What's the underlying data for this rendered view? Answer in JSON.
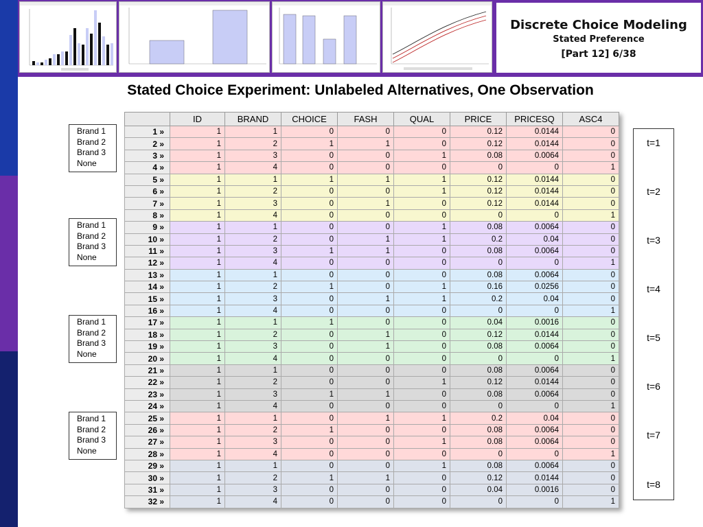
{
  "slide": {
    "title": "Stated Choice Experiment: Unlabeled Alternatives, One Observation"
  },
  "header": {
    "title_line1": "Discrete Choice Modeling",
    "title_line2": "Stated Preference",
    "title_line3": "[Part 12]   6/38"
  },
  "colors": {
    "sidebar_top": "#1a3aa8",
    "sidebar_mid": "#6a2ea8",
    "sidebar_bottom": "#14216e",
    "header_bg": "#6a2ea8",
    "group_colors": [
      "#ffd9d9",
      "#f8f7cf",
      "#e8d9fb",
      "#d9ecfb",
      "#d9f3dc",
      "#dadada",
      "#ffd9d9",
      "#dde2ec"
    ]
  },
  "legend_items": [
    "Brand 1",
    "Brand 2",
    "Brand 3",
    "None"
  ],
  "table": {
    "columns": [
      "ID",
      "BRAND",
      "CHOICE",
      "FASH",
      "QUAL",
      "PRICE",
      "PRICESQ",
      "ASC4"
    ],
    "rows": [
      [
        "1",
        "1",
        "0",
        "0",
        "0",
        "0.12",
        "0.0144",
        "0"
      ],
      [
        "1",
        "2",
        "1",
        "1",
        "0",
        "0.12",
        "0.0144",
        "0"
      ],
      [
        "1",
        "3",
        "0",
        "0",
        "1",
        "0.08",
        "0.0064",
        "0"
      ],
      [
        "1",
        "4",
        "0",
        "0",
        "0",
        "0",
        "0",
        "1"
      ],
      [
        "1",
        "1",
        "1",
        "1",
        "1",
        "0.12",
        "0.0144",
        "0"
      ],
      [
        "1",
        "2",
        "0",
        "0",
        "1",
        "0.12",
        "0.0144",
        "0"
      ],
      [
        "1",
        "3",
        "0",
        "1",
        "0",
        "0.12",
        "0.0144",
        "0"
      ],
      [
        "1",
        "4",
        "0",
        "0",
        "0",
        "0",
        "0",
        "1"
      ],
      [
        "1",
        "1",
        "0",
        "0",
        "1",
        "0.08",
        "0.0064",
        "0"
      ],
      [
        "1",
        "2",
        "0",
        "1",
        "1",
        "0.2",
        "0.04",
        "0"
      ],
      [
        "1",
        "3",
        "1",
        "1",
        "0",
        "0.08",
        "0.0064",
        "0"
      ],
      [
        "1",
        "4",
        "0",
        "0",
        "0",
        "0",
        "0",
        "1"
      ],
      [
        "1",
        "1",
        "0",
        "0",
        "0",
        "0.08",
        "0.0064",
        "0"
      ],
      [
        "1",
        "2",
        "1",
        "0",
        "1",
        "0.16",
        "0.0256",
        "0"
      ],
      [
        "1",
        "3",
        "0",
        "1",
        "1",
        "0.2",
        "0.04",
        "0"
      ],
      [
        "1",
        "4",
        "0",
        "0",
        "0",
        "0",
        "0",
        "1"
      ],
      [
        "1",
        "1",
        "1",
        "0",
        "0",
        "0.04",
        "0.0016",
        "0"
      ],
      [
        "1",
        "2",
        "0",
        "1",
        "0",
        "0.12",
        "0.0144",
        "0"
      ],
      [
        "1",
        "3",
        "0",
        "1",
        "0",
        "0.08",
        "0.0064",
        "0"
      ],
      [
        "1",
        "4",
        "0",
        "0",
        "0",
        "0",
        "0",
        "1"
      ],
      [
        "1",
        "1",
        "0",
        "0",
        "0",
        "0.08",
        "0.0064",
        "0"
      ],
      [
        "1",
        "2",
        "0",
        "0",
        "1",
        "0.12",
        "0.0144",
        "0"
      ],
      [
        "1",
        "3",
        "1",
        "1",
        "0",
        "0.08",
        "0.0064",
        "0"
      ],
      [
        "1",
        "4",
        "0",
        "0",
        "0",
        "0",
        "0",
        "1"
      ],
      [
        "1",
        "1",
        "0",
        "1",
        "1",
        "0.2",
        "0.04",
        "0"
      ],
      [
        "1",
        "2",
        "1",
        "0",
        "0",
        "0.08",
        "0.0064",
        "0"
      ],
      [
        "1",
        "3",
        "0",
        "0",
        "1",
        "0.08",
        "0.0064",
        "0"
      ],
      [
        "1",
        "4",
        "0",
        "0",
        "0",
        "0",
        "0",
        "1"
      ],
      [
        "1",
        "1",
        "0",
        "0",
        "1",
        "0.08",
        "0.0064",
        "0"
      ],
      [
        "1",
        "2",
        "1",
        "1",
        "0",
        "0.12",
        "0.0144",
        "0"
      ],
      [
        "1",
        "3",
        "0",
        "0",
        "0",
        "0.04",
        "0.0016",
        "0"
      ],
      [
        "1",
        "4",
        "0",
        "0",
        "0",
        "0",
        "0",
        "1"
      ]
    ]
  },
  "time_labels": [
    "t=1",
    "t=2",
    "t=3",
    "t=4",
    "t=5",
    "t=6",
    "t=7",
    "t=8"
  ]
}
